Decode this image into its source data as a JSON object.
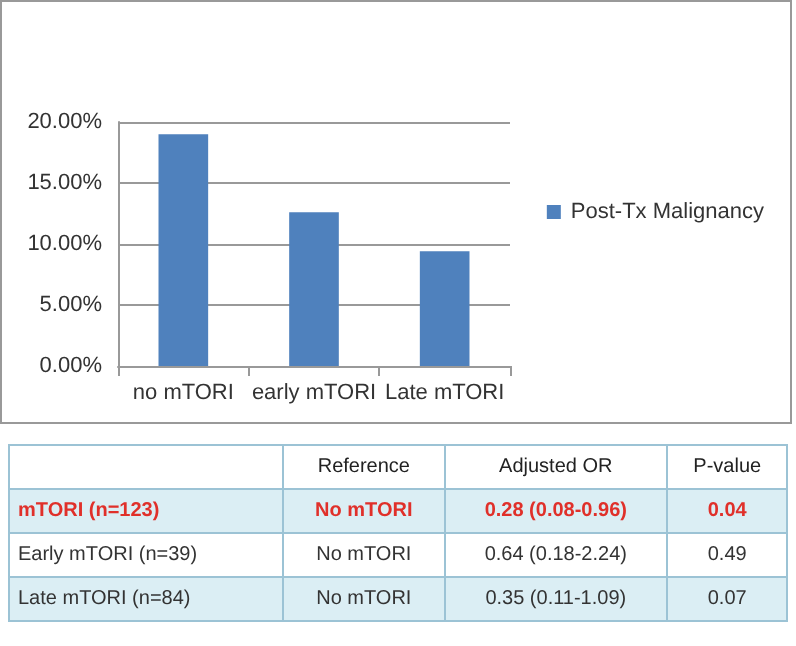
{
  "chart_data": [
    {
      "type": "bar",
      "categories": [
        "no mTORI",
        "early mTORI",
        "Late mTORI"
      ],
      "series": [
        {
          "name": "Post-Tx Malignancy",
          "color": "#4f81bd",
          "values": [
            19.0,
            12.6,
            9.4
          ]
        }
      ],
      "ylim": [
        0,
        20
      ],
      "yticks": [
        {
          "value": 0,
          "label": "0.00%"
        },
        {
          "value": 5,
          "label": "5.00%"
        },
        {
          "value": 10,
          "label": "10.00%"
        },
        {
          "value": 15,
          "label": "15.00%"
        },
        {
          "value": 20,
          "label": "20.00%"
        }
      ],
      "grid": "y",
      "legend": "right"
    },
    {
      "type": "other",
      "categories": [
        null,
        "Reference",
        "Adjusted OR",
        "P-value"
      ],
      "y_categories": [
        "mTORI (n=123)",
        "Early mTORI (n=39)",
        "Late mTORI (n=84)"
      ],
      "cell_labels": [
        [
          "No mTORI",
          "0.28 (0.08-0.96)",
          "0.04"
        ],
        [
          "No mTORI",
          "0.64 (0.18-2.24)",
          "0.49"
        ],
        [
          "No mTORI",
          "0.35 (0.11-1.09)",
          "0.07"
        ]
      ],
      "colors": [
        "#e0302a",
        "#333333",
        "#333333"
      ]
    }
  ]
}
